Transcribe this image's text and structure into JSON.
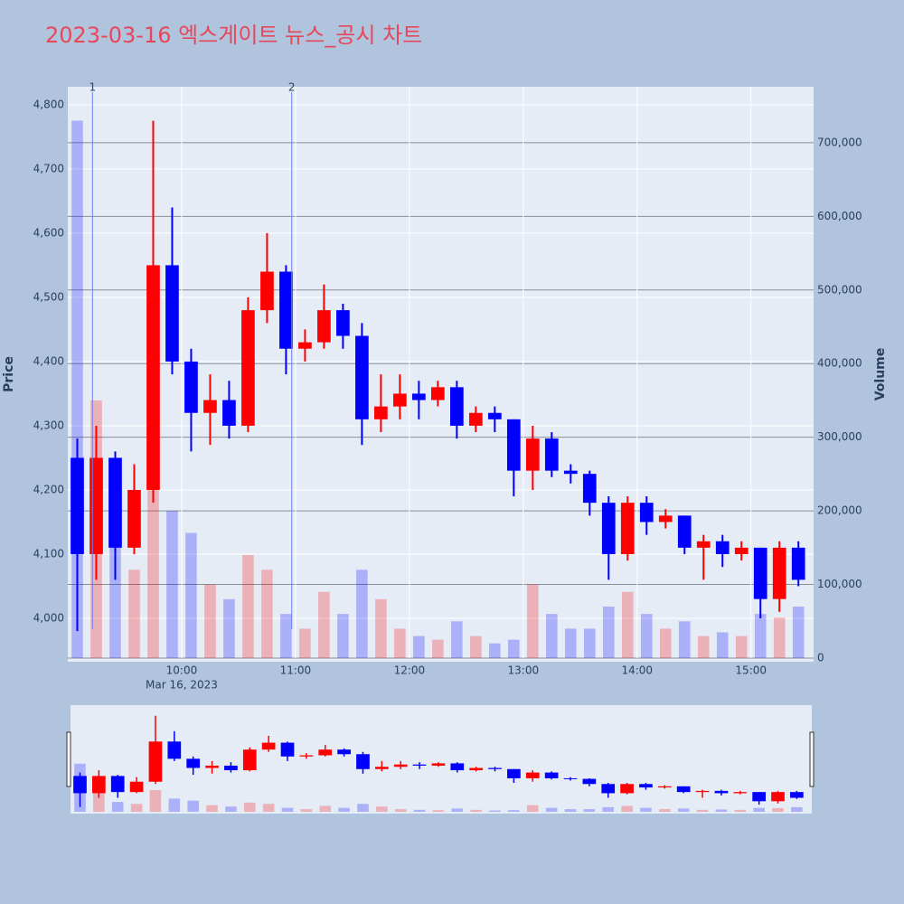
{
  "chart_data": {
    "type": "candlestick",
    "title": "2023-03-16 엑스게이트 뉴스_공시 차트",
    "y_label": "Price",
    "y2_label": "Volume",
    "x_sublabel": "Mar 16, 2023",
    "x": [
      "09:00",
      "09:10",
      "09:20",
      "09:30",
      "09:40",
      "09:50",
      "10:00",
      "10:10",
      "10:20",
      "10:30",
      "10:40",
      "10:50",
      "11:00",
      "11:10",
      "11:20",
      "11:30",
      "11:40",
      "11:50",
      "12:00",
      "12:10",
      "12:20",
      "12:30",
      "12:40",
      "12:50",
      "13:00",
      "13:10",
      "13:20",
      "13:30",
      "13:40",
      "13:50",
      "14:00",
      "14:10",
      "14:20",
      "14:30",
      "14:40",
      "14:50",
      "15:00",
      "15:10",
      "15:20"
    ],
    "open": [
      4250,
      4100,
      4250,
      4110,
      4200,
      4550,
      4400,
      4320,
      4340,
      4300,
      4480,
      4540,
      4420,
      4430,
      4480,
      4440,
      4310,
      4330,
      4350,
      4340,
      4360,
      4300,
      4320,
      4310,
      4230,
      4280,
      4230,
      4225,
      4180,
      4100,
      4180,
      4150,
      4160,
      4110,
      4120,
      4100,
      4110,
      4030,
      4110
    ],
    "high": [
      4280,
      4300,
      4260,
      4240,
      4775,
      4640,
      4420,
      4380,
      4370,
      4500,
      4600,
      4550,
      4450,
      4520,
      4490,
      4460,
      4380,
      4380,
      4370,
      4370,
      4370,
      4330,
      4330,
      4310,
      4300,
      4290,
      4240,
      4230,
      4190,
      4190,
      4190,
      4170,
      4160,
      4130,
      4130,
      4120,
      4110,
      4120,
      4120
    ],
    "low": [
      3980,
      4060,
      4060,
      4100,
      4180,
      4380,
      4260,
      4270,
      4280,
      4290,
      4460,
      4380,
      4400,
      4420,
      4420,
      4270,
      4290,
      4310,
      4310,
      4330,
      4280,
      4290,
      4290,
      4190,
      4200,
      4220,
      4210,
      4160,
      4060,
      4090,
      4130,
      4140,
      4100,
      4060,
      4080,
      4090,
      4000,
      4010,
      4050
    ],
    "close": [
      4100,
      4250,
      4110,
      4200,
      4550,
      4400,
      4320,
      4340,
      4300,
      4480,
      4540,
      4420,
      4430,
      4480,
      4440,
      4310,
      4330,
      4350,
      4340,
      4360,
      4300,
      4320,
      4310,
      4230,
      4280,
      4230,
      4225,
      4180,
      4100,
      4180,
      4150,
      4160,
      4110,
      4120,
      4100,
      4110,
      4030,
      4110,
      4060
    ],
    "volume": [
      730000,
      350000,
      150000,
      120000,
      330000,
      200000,
      170000,
      100000,
      80000,
      140000,
      120000,
      60000,
      40000,
      90000,
      60000,
      120000,
      80000,
      40000,
      30000,
      25000,
      50000,
      30000,
      20000,
      25000,
      100000,
      60000,
      40000,
      40000,
      70000,
      90000,
      60000,
      40000,
      50000,
      30000,
      35000,
      30000,
      60000,
      55000,
      70000
    ],
    "increasing_color": "#ff0000",
    "decreasing_color": "#0000ff",
    "xlim": [
      "09:00",
      "15:33"
    ],
    "xticks": [
      "10:00",
      "11:00",
      "12:00",
      "13:00",
      "14:00",
      "15:00"
    ],
    "ylim": [
      3938,
      4828
    ],
    "yticks": [
      {
        "value": 4000,
        "label": "4,000"
      },
      {
        "value": 4100,
        "label": "4,100"
      },
      {
        "value": 4200,
        "label": "4,200"
      },
      {
        "value": 4300,
        "label": "4,300"
      },
      {
        "value": 4400,
        "label": "4,400"
      },
      {
        "value": 4500,
        "label": "4,500"
      },
      {
        "value": 4600,
        "label": "4,600"
      },
      {
        "value": 4700,
        "label": "4,700"
      },
      {
        "value": 4800,
        "label": "4,800"
      }
    ],
    "y2lim": [
      0,
      776000
    ],
    "y2ticks": [
      0,
      {
        "value": 100000,
        "label": "100,000"
      },
      {
        "value": 200000,
        "label": "200,000"
      },
      {
        "value": 300000,
        "label": "300,000"
      },
      {
        "value": 400000,
        "label": "400,000"
      },
      {
        "value": 500000,
        "label": "500,000"
      },
      {
        "value": 600000,
        "label": "600,000"
      },
      {
        "value": 700000,
        "label": "700,000"
      }
    ],
    "annotations": [
      {
        "x": "09:13",
        "text": "1"
      },
      {
        "x": "10:58",
        "text": "2"
      }
    ],
    "grid": true
  }
}
